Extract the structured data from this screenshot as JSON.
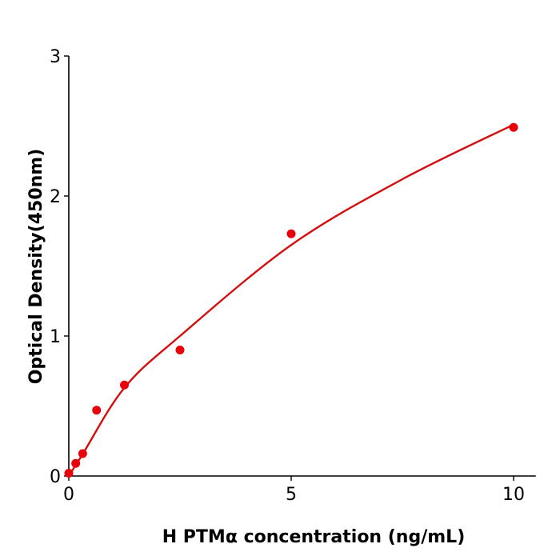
{
  "chart_data": {
    "type": "scatter",
    "title": "",
    "xlabel": "H  PTMα concentration (ng/mL)",
    "ylabel": "Optical Density(450nm)",
    "xlim": [
      0,
      10.5
    ],
    "ylim": [
      0,
      3
    ],
    "xticks": [
      0,
      5,
      10
    ],
    "yticks": [
      0,
      1,
      2,
      3
    ],
    "grid": false,
    "points": {
      "x": [
        0,
        0.156,
        0.3125,
        0.625,
        1.25,
        2.5,
        5,
        10
      ],
      "y": [
        0.02,
        0.09,
        0.16,
        0.47,
        0.65,
        0.9,
        1.73,
        2.49
      ]
    },
    "fit_curve": {
      "x": [
        0,
        0.3,
        1.25,
        2.5,
        5,
        7.5,
        10
      ],
      "y": [
        0,
        0.15,
        0.63,
        1.0,
        1.65,
        2.12,
        2.51
      ]
    },
    "colors": {
      "points": "#e8000b",
      "curve": "#d40f0f",
      "axes": "#000000"
    }
  }
}
